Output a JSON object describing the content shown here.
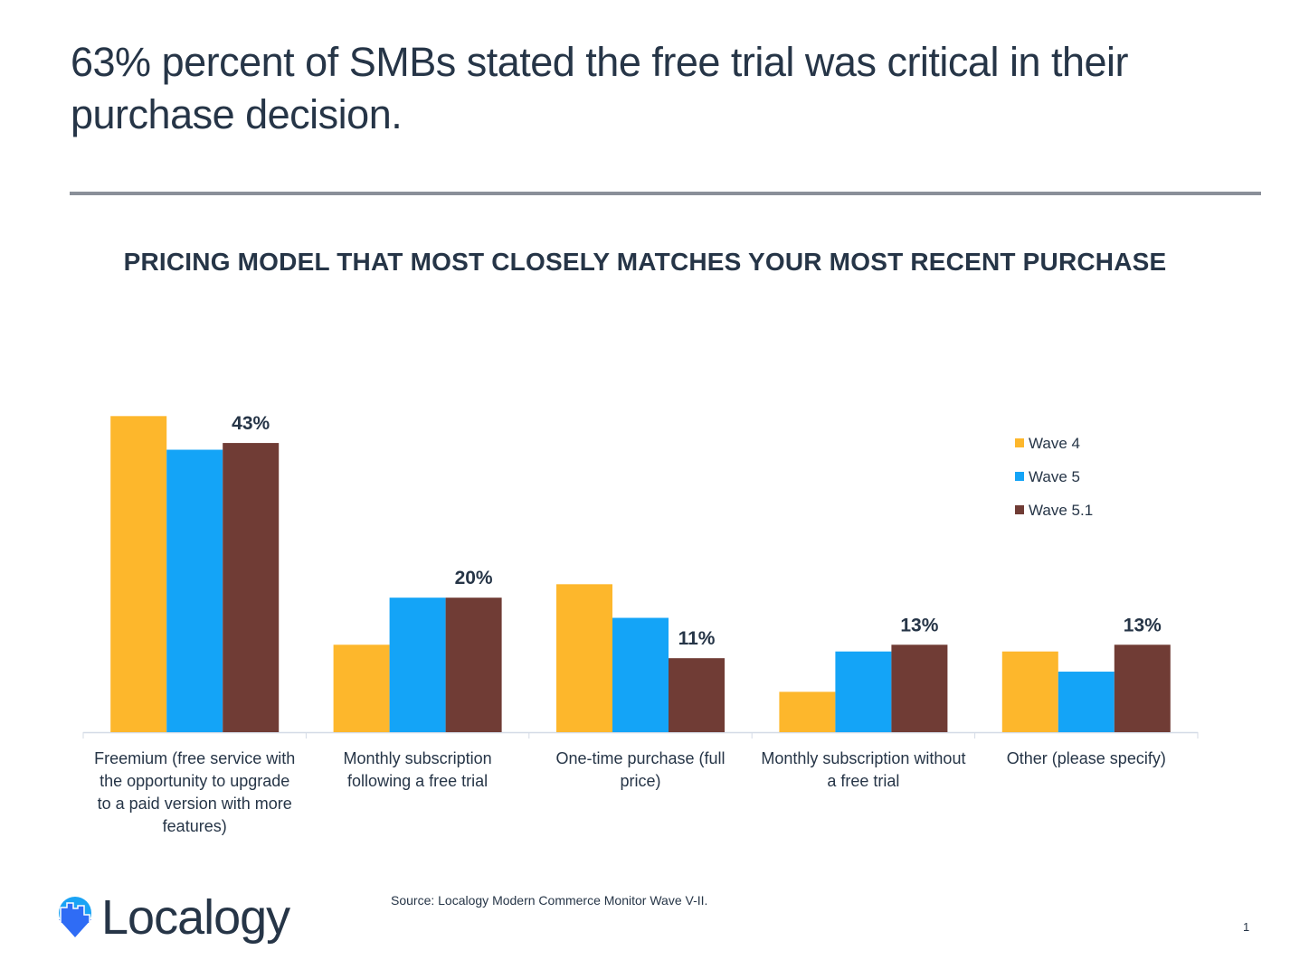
{
  "headline": "63% percent of SMBs stated the free trial was critical in their purchase decision.",
  "source": "Source: Localogy Modern Commerce Monitor Wave V-II.",
  "page_number": "1",
  "logo": {
    "text": "Localogy",
    "colors": {
      "circle": "#1aa3f5",
      "arrow": "#2f6cf5",
      "text": "#263547"
    }
  },
  "chart_data": {
    "type": "bar",
    "title": "PRICING MODEL THAT MOST CLOSELY MATCHES YOUR MOST RECENT PURCHASE",
    "categories": [
      [
        "Freemium (free service with",
        "the opportunity to upgrade",
        "to a paid version with more",
        "features)"
      ],
      [
        "Monthly subscription",
        "following a free trial"
      ],
      [
        "One-time purchase (full",
        "price)"
      ],
      [
        "Monthly subscription without",
        "a free trial"
      ],
      [
        "Other (please specify)"
      ]
    ],
    "series": [
      {
        "name": "Wave 4",
        "color": "#fdb72c",
        "values": [
          47,
          13,
          22,
          6,
          12
        ],
        "show_labels": false
      },
      {
        "name": "Wave 5",
        "color": "#14a4f7",
        "values": [
          42,
          20,
          17,
          12,
          9
        ],
        "show_labels": false
      },
      {
        "name": "Wave 5.1",
        "color": "#703c35",
        "values": [
          43,
          20,
          11,
          13,
          13
        ],
        "show_labels": true
      }
    ],
    "value_format": "%",
    "ylim": [
      0,
      50
    ],
    "grid": false,
    "legend_placement": "right"
  }
}
